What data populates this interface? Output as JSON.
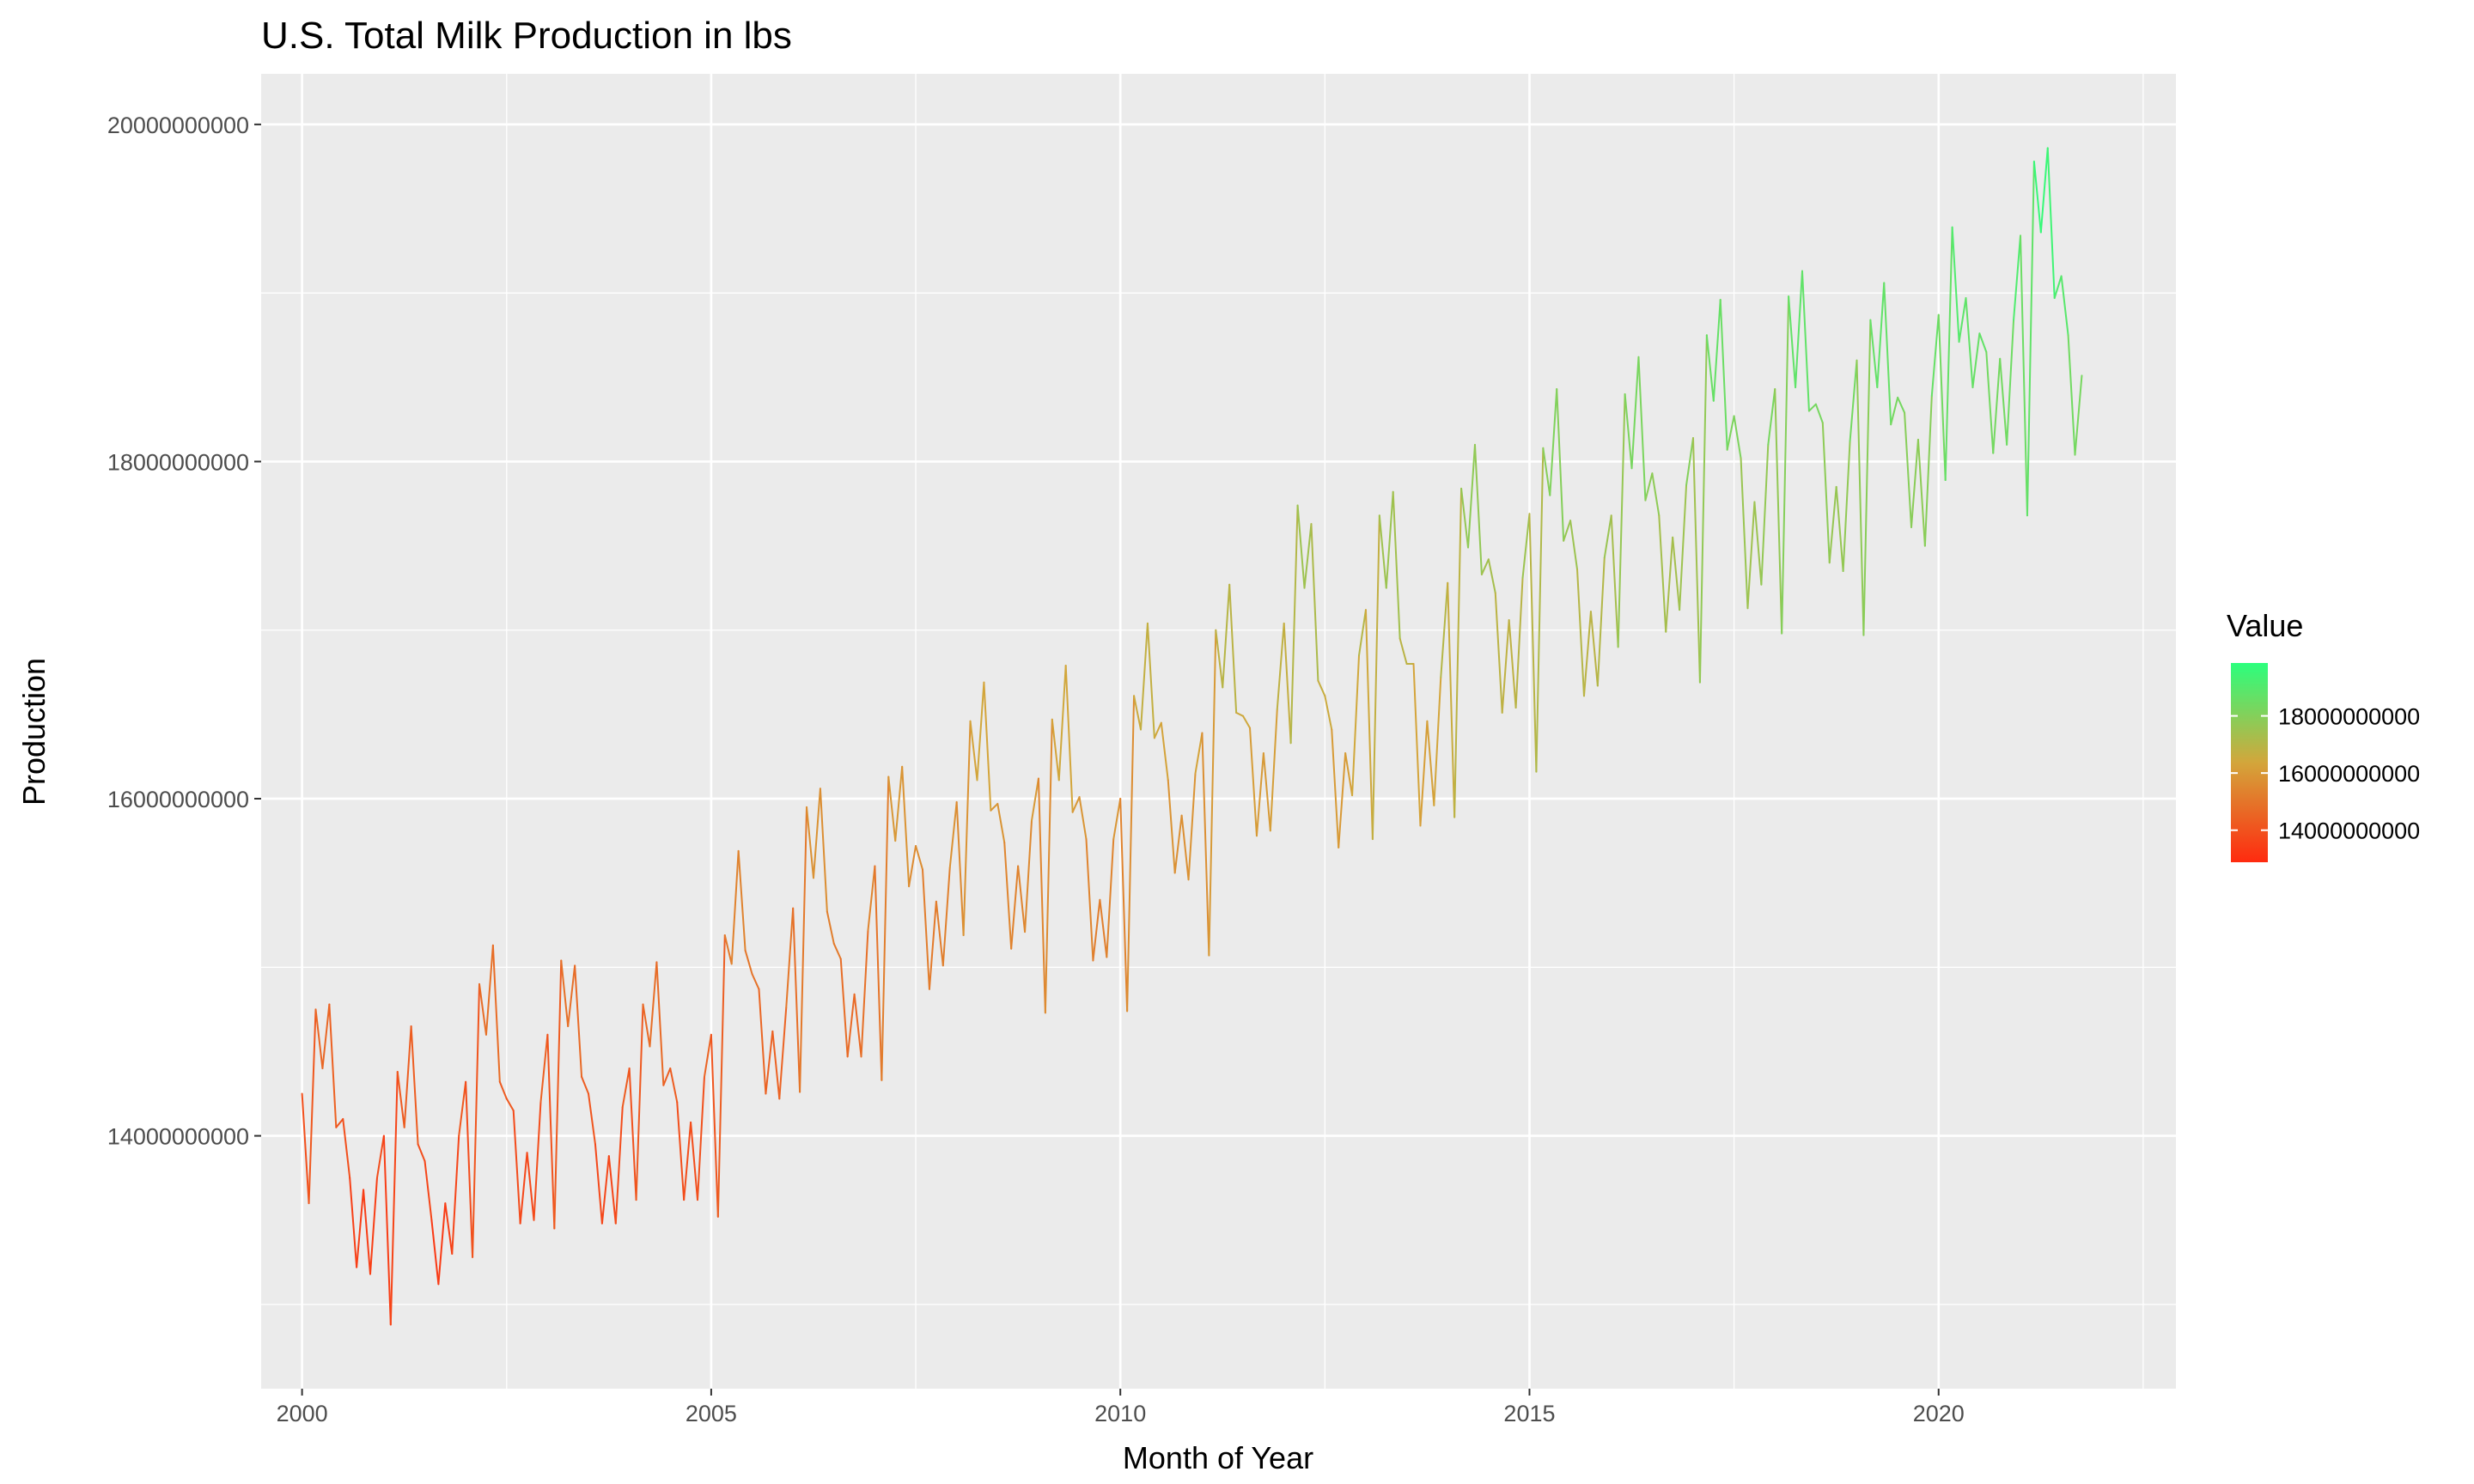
{
  "chart_data": {
    "type": "line",
    "title": "U.S. Total Milk Production in lbs",
    "xlabel": "Month of Year",
    "ylabel": "Production",
    "xlim": [
      1999.5,
      2022.9
    ],
    "ylim": [
      12500000000,
      20300000000
    ],
    "x_ticks": [
      2000,
      2005,
      2010,
      2015,
      2020
    ],
    "x_tick_labels": [
      "2000",
      "2005",
      "2010",
      "2015",
      "2020"
    ],
    "y_ticks": [
      14000000000,
      16000000000,
      18000000000,
      20000000000
    ],
    "y_tick_labels": [
      "14000000000",
      "16000000000",
      "18000000000",
      "20000000000"
    ],
    "grid": true,
    "color_scale": {
      "low_color": "#ff2a0f",
      "mid_color": "#d3a63b",
      "high_color": "#2bff7d",
      "range": [
        12880000000,
        19850000000
      ]
    },
    "legend": {
      "title": "Value",
      "position": "right",
      "breaks": [
        14000000000,
        16000000000,
        18000000000
      ],
      "labels": [
        "14000000000",
        "16000000000",
        "18000000000"
      ]
    },
    "series": [
      {
        "start_year": 2000,
        "step": "month",
        "values": [
          14250000000,
          13600000000,
          14750000000,
          14400000000,
          14780000000,
          14050000000,
          14100000000,
          13750000000,
          13220000000,
          13680000000,
          13180000000,
          13750000000,
          14000000000,
          12880000000,
          14380000000,
          14050000000,
          14650000000,
          13950000000,
          13850000000,
          13500000000,
          13120000000,
          13600000000,
          13300000000,
          14000000000,
          14320000000,
          13280000000,
          14900000000,
          14600000000,
          15130000000,
          14320000000,
          14220000000,
          14150000000,
          13480000000,
          13900000000,
          13500000000,
          14200000000,
          14600000000,
          13450000000,
          15040000000,
          14650000000,
          15010000000,
          14350000000,
          14250000000,
          13950000000,
          13480000000,
          13880000000,
          13480000000,
          14170000000,
          14400000000,
          13620000000,
          14780000000,
          14530000000,
          15030000000,
          14300000000,
          14400000000,
          14200000000,
          13620000000,
          14080000000,
          13620000000,
          14350000000,
          14600000000,
          13520000000,
          15190000000,
          15020000000,
          15690000000,
          15100000000,
          14960000000,
          14870000000,
          14250000000,
          14620000000,
          14220000000,
          14760000000,
          15350000000,
          14260000000,
          15950000000,
          15530000000,
          16060000000,
          15330000000,
          15140000000,
          15050000000,
          14470000000,
          14840000000,
          14470000000,
          15220000000,
          15600000000,
          14330000000,
          16130000000,
          15750000000,
          16190000000,
          15480000000,
          15720000000,
          15580000000,
          14870000000,
          15390000000,
          15010000000,
          15590000000,
          15980000000,
          15190000000,
          16460000000,
          16110000000,
          16690000000,
          15930000000,
          15970000000,
          15740000000,
          15110000000,
          15600000000,
          15210000000,
          15870000000,
          16120000000,
          14730000000,
          16470000000,
          16110000000,
          16790000000,
          15920000000,
          16010000000,
          15760000000,
          15040000000,
          15400000000,
          15060000000,
          15760000000,
          16000000000,
          14740000000,
          16610000000,
          16410000000,
          17040000000,
          16360000000,
          16450000000,
          16110000000,
          15560000000,
          15900000000,
          15520000000,
          16150000000,
          16390000000,
          15070000000,
          17000000000,
          16660000000,
          17270000000,
          16510000000,
          16490000000,
          16420000000,
          15780000000,
          16270000000,
          15810000000,
          16530000000,
          17040000000,
          16330000000,
          17740000000,
          17250000000,
          17630000000,
          16700000000,
          16610000000,
          16410000000,
          15710000000,
          16270000000,
          16020000000,
          16850000000,
          17120000000,
          15760000000,
          17680000000,
          17250000000,
          17820000000,
          16950000000,
          16800000000,
          16800000000,
          15840000000,
          16460000000,
          15960000000,
          16720000000,
          17280000000,
          15890000000,
          17840000000,
          17490000000,
          18100000000,
          17330000000,
          17420000000,
          17220000000,
          16510000000,
          17060000000,
          16540000000,
          17310000000,
          17690000000,
          16160000000,
          18080000000,
          17800000000,
          18430000000,
          17530000000,
          17650000000,
          17360000000,
          16610000000,
          17110000000,
          16670000000,
          17430000000,
          17680000000,
          16900000000,
          18400000000,
          17960000000,
          18620000000,
          17770000000,
          17930000000,
          17680000000,
          16990000000,
          17550000000,
          17120000000,
          17860000000,
          18140000000,
          16690000000,
          18750000000,
          18360000000,
          18960000000,
          18070000000,
          18270000000,
          18020000000,
          17130000000,
          17760000000,
          17270000000,
          18100000000,
          18430000000,
          16980000000,
          18980000000,
          18440000000,
          19130000000,
          18300000000,
          18340000000,
          18230000000,
          17400000000,
          17850000000,
          17350000000,
          18120000000,
          18600000000,
          16970000000,
          18840000000,
          18440000000,
          19060000000,
          18220000000,
          18380000000,
          18290000000,
          17610000000,
          18130000000,
          17500000000,
          18390000000,
          18870000000,
          17890000000,
          19390000000,
          18710000000,
          18970000000,
          18440000000,
          18760000000,
          18650000000,
          18050000000,
          18610000000,
          18100000000,
          18840000000,
          19340000000,
          17680000000,
          19780000000,
          19360000000,
          19860000000,
          18970000000,
          19100000000,
          18750000000,
          18040000000,
          18510000000
        ]
      }
    ]
  }
}
